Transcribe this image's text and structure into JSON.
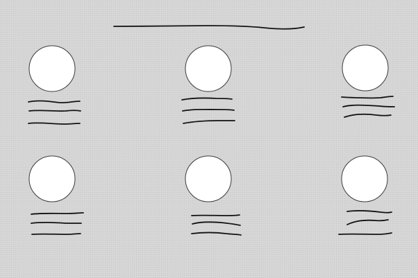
{
  "wireframe": {
    "background": "#d6d6d6",
    "circle_fill": "#ffffff",
    "circle_stroke": "#3a3a3a",
    "line_color": "#111111",
    "cards": [
      {
        "id": "card-1",
        "icon": "profile-circle-icon",
        "text_lines": 3
      },
      {
        "id": "card-2",
        "icon": "profile-circle-icon",
        "text_lines": 3
      },
      {
        "id": "card-3",
        "icon": "profile-circle-icon",
        "text_lines": 3
      },
      {
        "id": "card-4",
        "icon": "profile-circle-icon",
        "text_lines": 3
      },
      {
        "id": "card-5",
        "icon": "profile-circle-icon",
        "text_lines": 3
      },
      {
        "id": "card-6",
        "icon": "profile-circle-icon",
        "text_lines": 3
      }
    ]
  }
}
